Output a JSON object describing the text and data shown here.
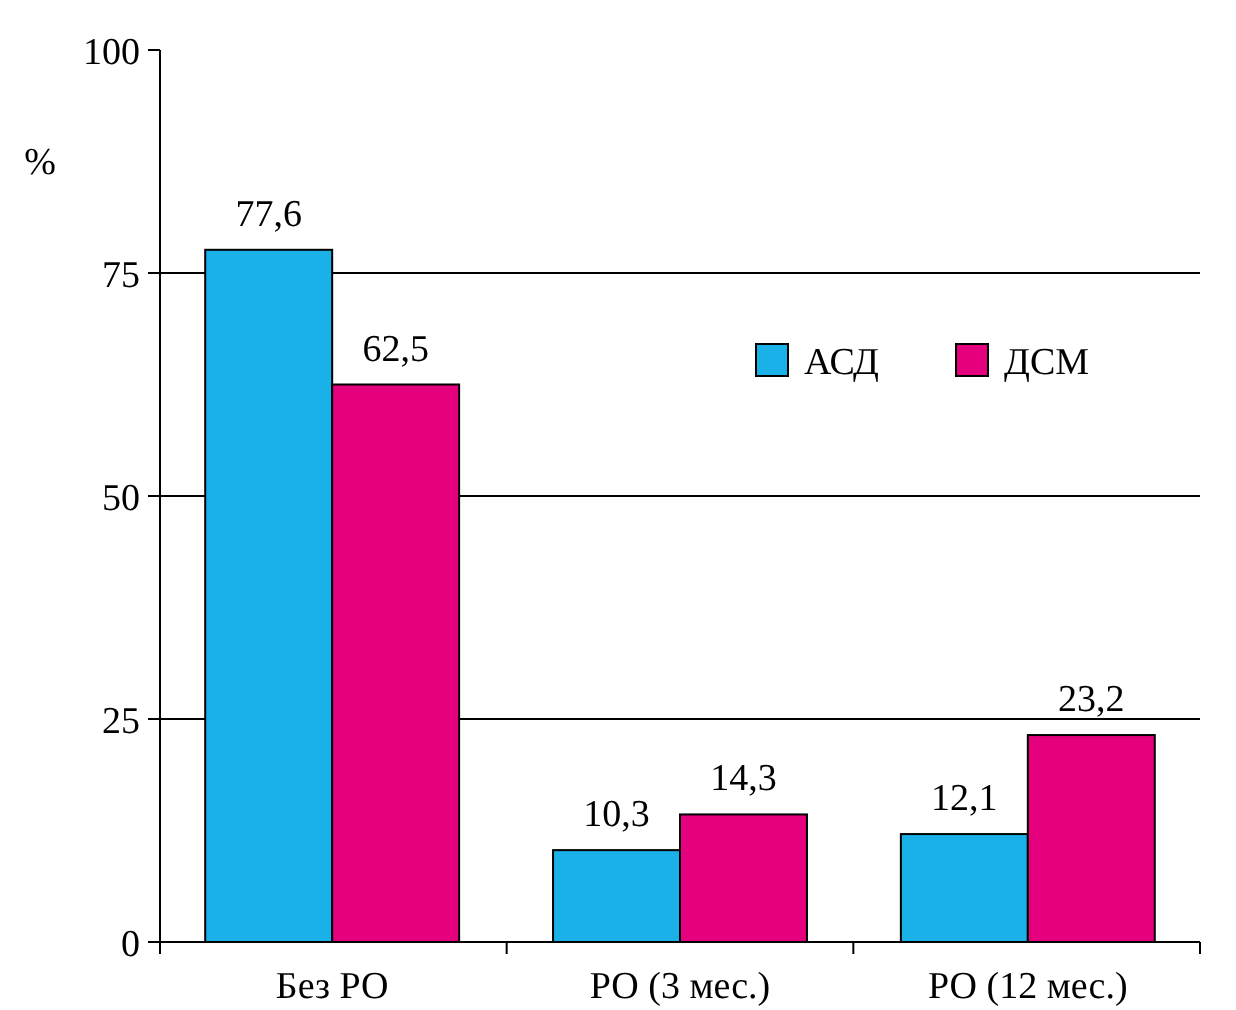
{
  "chart_data": {
    "type": "bar",
    "ylabel": "%",
    "categories": [
      "Без РО",
      "РО (3 мес.)",
      "РО (12 мес.)"
    ],
    "series": [
      {
        "name": "АСД",
        "color": "#1ab0e8",
        "values": [
          77.6,
          10.3,
          12.1
        ],
        "value_labels": [
          "77,6",
          "10,3",
          "12,1"
        ]
      },
      {
        "name": "ДСМ",
        "color": "#e5007e",
        "values": [
          62.5,
          14.3,
          23.2
        ],
        "value_labels": [
          "62,5",
          "14,3",
          "23,2"
        ]
      }
    ],
    "ylim": [
      0,
      100
    ],
    "yticks": [
      0,
      25,
      50,
      75,
      100
    ],
    "grid": "y",
    "legend": "right"
  }
}
